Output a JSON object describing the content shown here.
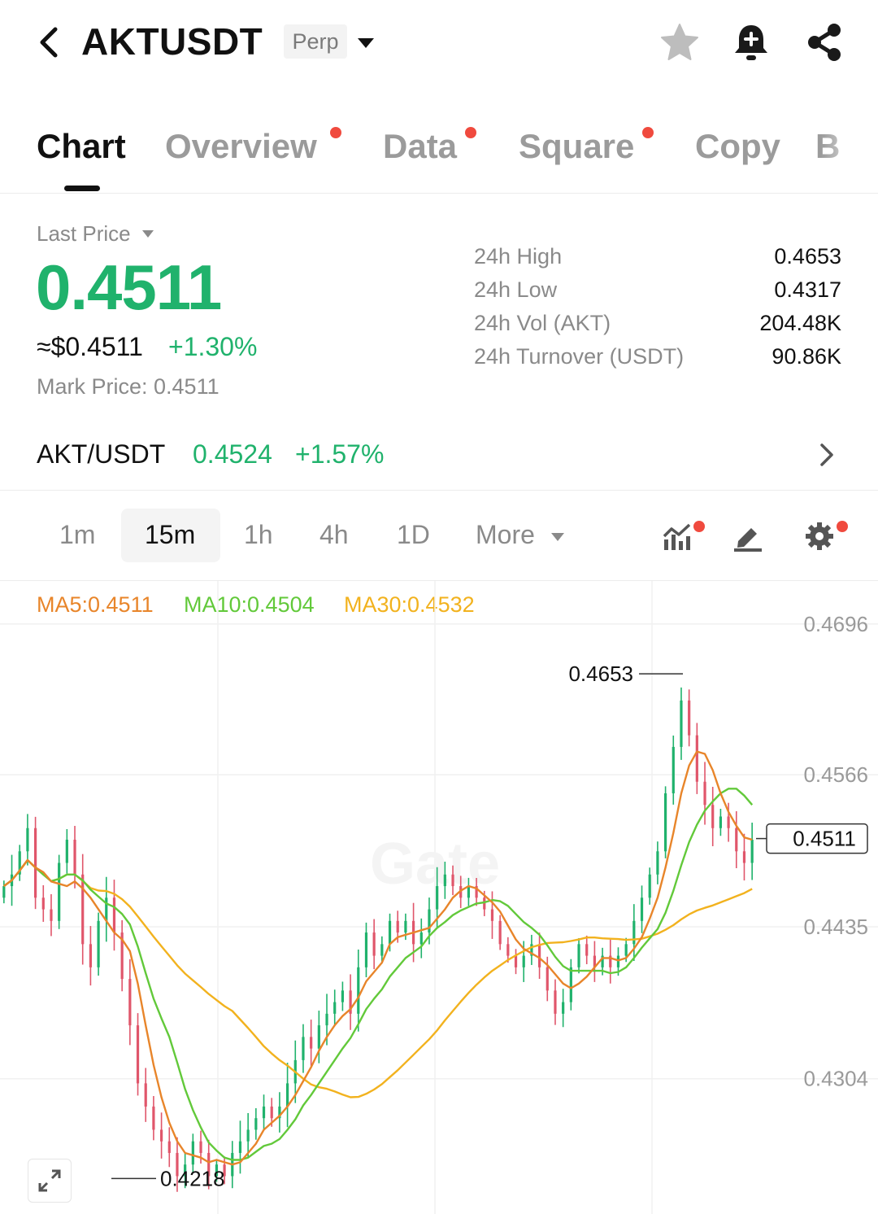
{
  "header": {
    "symbol": "AKTUSDT",
    "contract_type": "Perp",
    "icons": [
      "back-icon",
      "chevron-down-icon",
      "star-icon",
      "bell-plus-icon",
      "share-icon"
    ]
  },
  "tabs": [
    {
      "label": "Chart",
      "active": true,
      "dot": false
    },
    {
      "label": "Overview",
      "active": false,
      "dot": true
    },
    {
      "label": "Data",
      "active": false,
      "dot": true
    },
    {
      "label": "Square",
      "active": false,
      "dot": true
    },
    {
      "label": "Copy",
      "active": false,
      "dot": false
    },
    {
      "label": "B",
      "active": false,
      "dot": false
    }
  ],
  "price": {
    "last_price_label": "Last Price",
    "last_price": "0.4511",
    "usd_approx": "≈$0.4511",
    "change_pct": "+1.30%",
    "mark_price": "Mark Price:  0.4511"
  },
  "stats": [
    {
      "label": "24h High",
      "value": "0.4653"
    },
    {
      "label": "24h Low",
      "value": "0.4317"
    },
    {
      "label": "24h Vol (AKT)",
      "value": "204.48K"
    },
    {
      "label": "24h Turnover (USDT)",
      "value": "90.86K"
    }
  ],
  "spot": {
    "pair": "AKT/USDT",
    "price": "0.4524",
    "change_pct": "+1.57%"
  },
  "timeframes": {
    "items": [
      "1m",
      "15m",
      "1h",
      "4h",
      "1D",
      "More"
    ],
    "selected": "15m",
    "tool_icons": [
      "indicators-icon",
      "draw-icon",
      "settings-icon"
    ]
  },
  "colors": {
    "up": "#20b26c",
    "down": "#e0566b",
    "ma5": "#e8852a",
    "ma10": "#62c93a",
    "ma30": "#f2b21e",
    "accent_dot": "#f04a3e"
  },
  "chart_data": {
    "type": "candlestick",
    "interval": "15m",
    "ma_labels": [
      "MA5:0.4511",
      "MA10:0.4504",
      "MA30:0.4532"
    ],
    "y_ticks": [
      "0.4696",
      "0.4566",
      "0.4435",
      "0.4304"
    ],
    "ylim": [
      0.42,
      0.4712
    ],
    "high_marker": "0.4653",
    "low_marker": "0.4218",
    "current_price_label": "0.4511",
    "watermark": "Gate",
    "close_series": [
      0.447,
      0.448,
      0.45,
      0.452,
      0.446,
      0.445,
      0.444,
      0.449,
      0.451,
      0.448,
      0.442,
      0.44,
      0.444,
      0.446,
      0.443,
      0.439,
      0.435,
      0.43,
      0.428,
      0.426,
      0.425,
      0.424,
      0.422,
      0.423,
      0.425,
      0.424,
      0.422,
      0.423,
      0.422,
      0.424,
      0.425,
      0.426,
      0.427,
      0.428,
      0.427,
      0.428,
      0.43,
      0.432,
      0.434,
      0.433,
      0.435,
      0.436,
      0.437,
      0.438,
      0.436,
      0.44,
      0.443,
      0.441,
      0.442,
      0.444,
      0.443,
      0.444,
      0.442,
      0.443,
      0.445,
      0.447,
      0.448,
      0.447,
      0.446,
      0.447,
      0.446,
      0.445,
      0.444,
      0.442,
      0.441,
      0.44,
      0.441,
      0.442,
      0.44,
      0.438,
      0.436,
      0.437,
      0.44,
      0.442,
      0.441,
      0.44,
      0.441,
      0.44,
      0.441,
      0.442,
      0.444,
      0.446,
      0.448,
      0.45,
      0.455,
      0.459,
      0.463,
      0.46,
      0.456,
      0.454,
      0.452,
      0.453,
      0.452,
      0.45,
      0.449,
      0.451
    ]
  }
}
